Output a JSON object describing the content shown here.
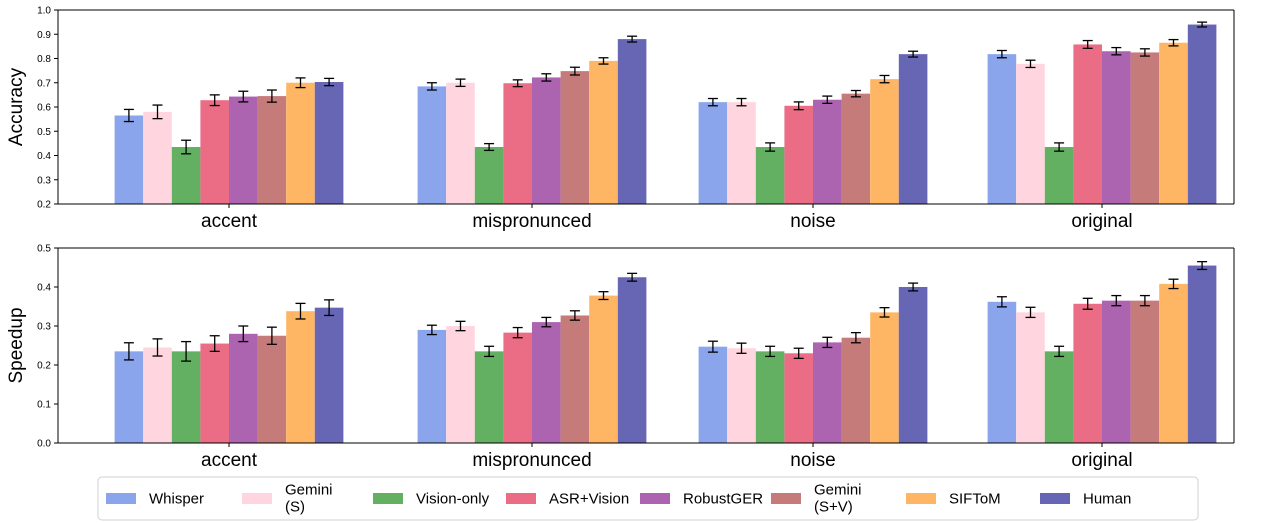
{
  "chart_data": [
    {
      "type": "bar",
      "ylabel": "Accuracy",
      "ylim": [
        0.2,
        1.0
      ],
      "yticks": [
        "0.2",
        "0.3",
        "0.4",
        "0.5",
        "0.6",
        "0.7",
        "0.8",
        "0.9",
        "1.0"
      ],
      "categories": [
        "accent",
        "mispronunced",
        "noise",
        "original"
      ],
      "grid": false,
      "error_bars": true,
      "series": [
        {
          "name": "Whisper",
          "values": [
            0.565,
            0.685,
            0.62,
            0.818
          ],
          "errors": [
            0.025,
            0.015,
            0.015,
            0.015
          ]
        },
        {
          "name": "Gemini (S)",
          "values": [
            0.58,
            0.7,
            0.62,
            0.778
          ],
          "errors": [
            0.028,
            0.015,
            0.015,
            0.015
          ]
        },
        {
          "name": "Vision-only",
          "values": [
            0.435,
            0.435,
            0.435,
            0.435
          ],
          "errors": [
            0.028,
            0.014,
            0.017,
            0.017
          ]
        },
        {
          "name": "ASR+Vision",
          "values": [
            0.628,
            0.698,
            0.605,
            0.858
          ],
          "errors": [
            0.022,
            0.014,
            0.016,
            0.016
          ]
        },
        {
          "name": "RobustGER",
          "values": [
            0.643,
            0.722,
            0.63,
            0.83
          ],
          "errors": [
            0.022,
            0.015,
            0.015,
            0.015
          ]
        },
        {
          "name": "Gemini (S+V)",
          "values": [
            0.645,
            0.748,
            0.655,
            0.825
          ],
          "errors": [
            0.025,
            0.016,
            0.013,
            0.015
          ]
        },
        {
          "name": "SIFToM",
          "values": [
            0.7,
            0.79,
            0.715,
            0.865
          ],
          "errors": [
            0.02,
            0.013,
            0.015,
            0.013
          ]
        },
        {
          "name": "Human",
          "values": [
            0.703,
            0.88,
            0.818,
            0.94
          ],
          "errors": [
            0.015,
            0.012,
            0.012,
            0.01
          ]
        }
      ]
    },
    {
      "type": "bar",
      "ylabel": "Speedup",
      "ylim": [
        0.0,
        0.5
      ],
      "yticks": [
        "0.0",
        "0.1",
        "0.2",
        "0.3",
        "0.4",
        "0.5"
      ],
      "categories": [
        "accent",
        "mispronunced",
        "noise",
        "original"
      ],
      "grid": false,
      "error_bars": true,
      "series": [
        {
          "name": "Whisper",
          "values": [
            0.235,
            0.29,
            0.247,
            0.362
          ],
          "errors": [
            0.022,
            0.012,
            0.014,
            0.013
          ]
        },
        {
          "name": "Gemini (S)",
          "values": [
            0.245,
            0.3,
            0.243,
            0.335
          ],
          "errors": [
            0.022,
            0.012,
            0.013,
            0.013
          ]
        },
        {
          "name": "Vision-only",
          "values": [
            0.235,
            0.235,
            0.235,
            0.235
          ],
          "errors": [
            0.025,
            0.013,
            0.013,
            0.013
          ]
        },
        {
          "name": "ASR+Vision",
          "values": [
            0.255,
            0.283,
            0.23,
            0.357
          ],
          "errors": [
            0.02,
            0.013,
            0.013,
            0.014
          ]
        },
        {
          "name": "RobustGER",
          "values": [
            0.28,
            0.31,
            0.258,
            0.365
          ],
          "errors": [
            0.02,
            0.012,
            0.013,
            0.013
          ]
        },
        {
          "name": "Gemini (S+V)",
          "values": [
            0.275,
            0.327,
            0.27,
            0.365
          ],
          "errors": [
            0.022,
            0.012,
            0.013,
            0.013
          ]
        },
        {
          "name": "SIFToM",
          "values": [
            0.338,
            0.378,
            0.335,
            0.408
          ],
          "errors": [
            0.02,
            0.01,
            0.012,
            0.012
          ]
        },
        {
          "name": "Human",
          "values": [
            0.347,
            0.425,
            0.4,
            0.455
          ],
          "errors": [
            0.02,
            0.01,
            0.01,
            0.01
          ]
        }
      ]
    }
  ],
  "legend": {
    "placement": "bottom",
    "items": [
      {
        "label": [
          "Whisper"
        ],
        "color": "#8ba5ec"
      },
      {
        "label": [
          "Gemini",
          "(S)"
        ],
        "color": "#ffd6df"
      },
      {
        "label": [
          "Vision-only"
        ],
        "color": "#63b063"
      },
      {
        "label": [
          "ASR+Vision"
        ],
        "color": "#ea6d85"
      },
      {
        "label": [
          "RobustGER"
        ],
        "color": "#ac64b0"
      },
      {
        "label": [
          "Gemini",
          "(S+V)"
        ],
        "color": "#c57b7a"
      },
      {
        "label": [
          "SIFToM"
        ],
        "color": "#ffb664"
      },
      {
        "label": [
          "Human"
        ],
        "color": "#6766b4"
      }
    ]
  }
}
